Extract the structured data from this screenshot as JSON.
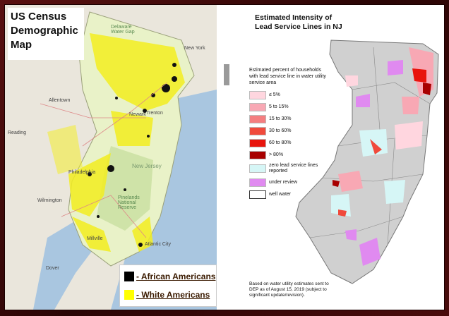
{
  "left_map": {
    "title_lines": [
      "US Census",
      "Demographic",
      "Map"
    ],
    "legend": [
      {
        "label": "- African Americans",
        "color": "#000000"
      },
      {
        "label": "- White Americans",
        "color": "#ffff00"
      }
    ],
    "place_labels": [
      "Allentown",
      "Reading",
      "Philadelphia",
      "Wilmington",
      "Dover",
      "New Jersey",
      "Pinelands National Reserve",
      "Atlantic City",
      "Millville",
      "New York",
      "Newark",
      "Trenton",
      "Delaware Water Gap"
    ]
  },
  "right_panel": {
    "title_lines": [
      "Estimated Intensity of",
      "Lead Service Lines in NJ"
    ],
    "legend_intro": "Estimated percent of households with lead service line in water utility service area",
    "legend_items": [
      {
        "label": "≤ 5%",
        "color": "#ffd6df"
      },
      {
        "label": "5 to 15%",
        "color": "#f8a8b4"
      },
      {
        "label": "15 to 30%",
        "color": "#f47e80"
      },
      {
        "label": "30 to 60%",
        "color": "#f04a3c"
      },
      {
        "label": "60 to 80%",
        "color": "#e8140c"
      },
      {
        "label": "> 80%",
        "color": "#a80000"
      },
      {
        "label": "zero lead service lines reported",
        "color": "#d6f6f6"
      },
      {
        "label": "under review",
        "color": "#e08af0"
      },
      {
        "label": "well water",
        "color": "#ffffff"
      }
    ],
    "footnote": "Based on water utility estimates sent to DEP as of August 15, 2019 (subject to significant update/revision)."
  },
  "colors": {
    "frame": "#3b0a0a",
    "ocean": "#a9c6e0",
    "land_state": "#cccccc",
    "county_lines": "#8a8a8a"
  }
}
